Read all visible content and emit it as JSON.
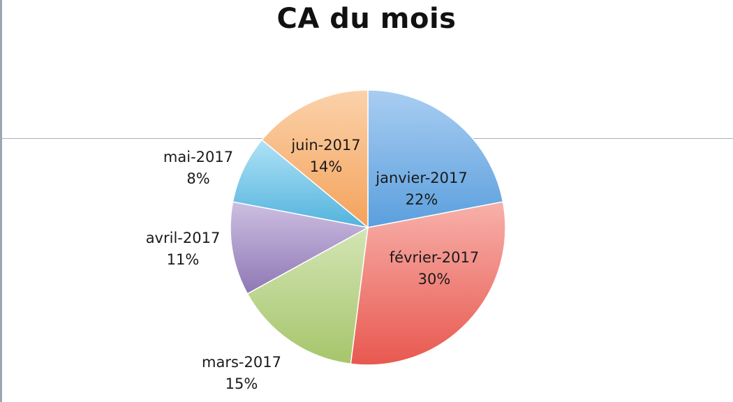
{
  "chart_data": {
    "type": "pie",
    "title": "CA du mois",
    "slices": [
      {
        "label": "janvier-2017",
        "value": 22,
        "pct_label": "22%",
        "color": "#5a9fdd",
        "color_light": "#a9cdf2"
      },
      {
        "label": "février-2017",
        "value": 30,
        "pct_label": "30%",
        "color": "#e8584f",
        "color_light": "#f7b1aa"
      },
      {
        "label": "mars-2017",
        "value": 15,
        "pct_label": "15%",
        "color": "#a6c56b",
        "color_light": "#d3e5b5"
      },
      {
        "label": "avril-2017",
        "value": 11,
        "pct_label": "11%",
        "color": "#8f78b4",
        "color_light": "#cdbfe2"
      },
      {
        "label": "mai-2017",
        "value": 8,
        "pct_label": "8%",
        "color": "#52b3dd",
        "color_light": "#b0e2f6"
      },
      {
        "label": "juin-2017",
        "value": 14,
        "pct_label": "14%",
        "color": "#f4a25b",
        "color_light": "#fbd2aa"
      }
    ],
    "start_angle_deg": 0,
    "direction": "clockwise",
    "legend": "none"
  }
}
